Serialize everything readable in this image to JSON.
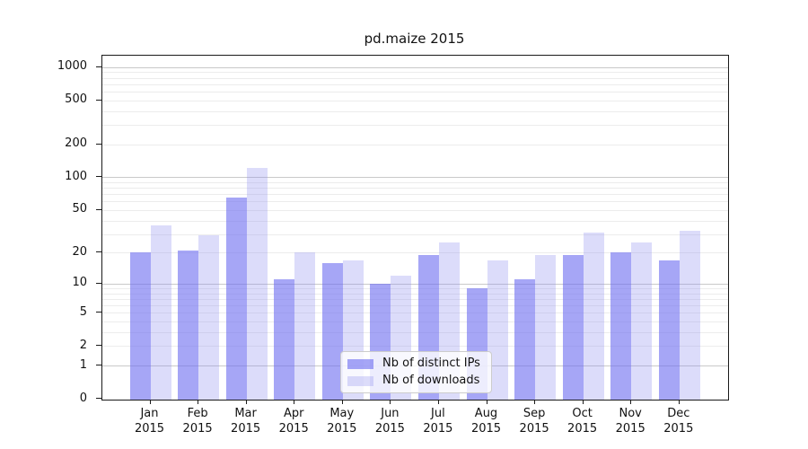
{
  "title": "pd.maize 2015",
  "chart_data": {
    "type": "bar",
    "title": "pd.maize 2015",
    "categories": [
      "Jan 2015",
      "Feb 2015",
      "Mar 2015",
      "Apr 2015",
      "May 2015",
      "Jun 2015",
      "Jul 2015",
      "Aug 2015",
      "Sep 2015",
      "Oct 2015",
      "Nov 2015",
      "Dec 2015"
    ],
    "series": [
      {
        "name": "Nb of distinct IPs",
        "color": "rgba(112,112,240,0.62)",
        "values": [
          20,
          21,
          65,
          11,
          16,
          10,
          19,
          9,
          11,
          19,
          20,
          17
        ]
      },
      {
        "name": "Nb of downloads",
        "color": "rgba(138,138,240,0.30)",
        "values": [
          36,
          29,
          122,
          20,
          17,
          12,
          25,
          17,
          19,
          31,
          25,
          32
        ]
      }
    ],
    "yscale": "log1p",
    "ylim": [
      0,
      1000
    ],
    "yticks": [
      0,
      1,
      2,
      5,
      10,
      20,
      50,
      100,
      200,
      500,
      1000
    ],
    "grid": true,
    "legend_position": "bottom-center",
    "colors": {
      "distinct_ips_rendered": "#a7a7f6",
      "downloads_rendered": "#dcdcfa",
      "major_grid": "#c9c9c9",
      "minor_grid": "#ececec",
      "spine": "#1a1a1a"
    }
  }
}
